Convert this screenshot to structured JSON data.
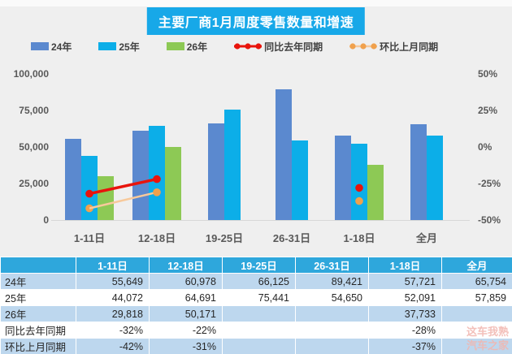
{
  "title": "主要厂商1月周度零售数量和增速",
  "legend": [
    {
      "label": "24年",
      "type": "bar",
      "color": "#5b89cf"
    },
    {
      "label": "25年",
      "type": "bar",
      "color": "#0caee8"
    },
    {
      "label": "26年",
      "type": "bar",
      "color": "#8dc955"
    },
    {
      "label": "同比去年同期",
      "type": "line",
      "color": "#e8140c",
      "marker": "#e8140c"
    },
    {
      "label": "环比上月同期",
      "type": "line",
      "color": "#f7c99b",
      "marker": "#f0a14d"
    }
  ],
  "chart_data": {
    "type": "bar",
    "subtype": "combo-bar-line",
    "categories": [
      "1-11日",
      "12-18日",
      "19-25日",
      "26-31日",
      "1-18日",
      "全月"
    ],
    "series": [
      {
        "name": "24年",
        "kind": "bar",
        "color": "#5b89cf",
        "values": [
          55649,
          60978,
          66125,
          89421,
          57721,
          65754
        ]
      },
      {
        "name": "25年",
        "kind": "bar",
        "color": "#0caee8",
        "values": [
          44072,
          64691,
          75441,
          54650,
          52091,
          57859
        ]
      },
      {
        "name": "26年",
        "kind": "bar",
        "color": "#8dc955",
        "values": [
          29818,
          50171,
          null,
          null,
          37733,
          null
        ]
      },
      {
        "name": "同比去年同期",
        "kind": "line",
        "color": "#e8140c",
        "marker": "#e8140c",
        "width": 3.5,
        "values": [
          -32,
          -22,
          null,
          null,
          -28,
          null
        ]
      },
      {
        "name": "环比上月同期",
        "kind": "line",
        "color": "#f7c99b",
        "marker": "#f0a14d",
        "width": 2.5,
        "values": [
          -42,
          -31,
          null,
          null,
          -37,
          null
        ]
      }
    ],
    "left_axis": {
      "ticks": [
        "100,000",
        "75,000",
        "50,000",
        "25,000",
        "0"
      ],
      "min": 0,
      "max": 100000
    },
    "right_axis": {
      "ticks": [
        "50%",
        "25%",
        "0%",
        "-25%",
        "-50%"
      ],
      "min": -50,
      "max": 50
    },
    "grid": false,
    "legend_position": "top"
  },
  "table": {
    "header": [
      "",
      "1-11日",
      "12-18日",
      "19-25日",
      "26-31日",
      "1-18日",
      "全月"
    ],
    "rows": [
      {
        "label": "24年",
        "values": [
          "55,649",
          "60,978",
          "66,125",
          "89,421",
          "57,721",
          "65,754"
        ]
      },
      {
        "label": "25年",
        "values": [
          "44,072",
          "64,691",
          "75,441",
          "54,650",
          "52,091",
          "57,859"
        ]
      },
      {
        "label": "26年",
        "values": [
          "29,818",
          "50,171",
          "",
          "",
          "37,733",
          ""
        ]
      },
      {
        "label": "同比去年同期",
        "values": [
          "-32%",
          "-22%",
          "",
          "",
          "-28%",
          ""
        ]
      },
      {
        "label": "环比上月同期",
        "values": [
          "-42%",
          "-31%",
          "",
          "",
          "-37%",
          ""
        ]
      }
    ]
  },
  "watermark": {
    "line1": "这车我熟",
    "line2": "汽车之家"
  }
}
